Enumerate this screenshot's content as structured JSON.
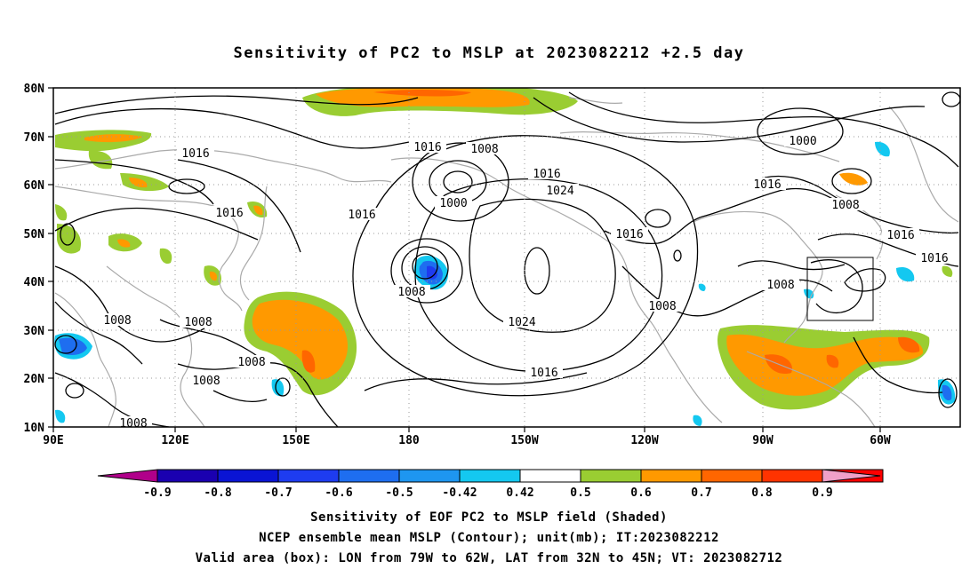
{
  "title": "Sensitivity of PC2 to MSLP at 2023082212 +2.5 day",
  "lat_ticks": [
    "80N",
    "70N",
    "60N",
    "50N",
    "40N",
    "30N",
    "20N",
    "10N"
  ],
  "lon_ticks": [
    "90E",
    "120E",
    "150E",
    "180",
    "150W",
    "120W",
    "90W",
    "60W"
  ],
  "contour_labels": [
    {
      "text": "1016"
    },
    {
      "text": "1016"
    },
    {
      "text": "1016"
    },
    {
      "text": "1008"
    },
    {
      "text": "1008"
    },
    {
      "text": "1008"
    },
    {
      "text": "1008"
    },
    {
      "text": "1008"
    },
    {
      "text": "1016"
    },
    {
      "text": "1008"
    },
    {
      "text": "1000"
    },
    {
      "text": "1016"
    },
    {
      "text": "1024"
    },
    {
      "text": "1016"
    },
    {
      "text": "1024"
    },
    {
      "text": "1016"
    },
    {
      "text": "1008"
    },
    {
      "text": "1000"
    },
    {
      "text": "1016"
    },
    {
      "text": "1008"
    },
    {
      "text": "1016"
    },
    {
      "text": "1016"
    },
    {
      "text": "1008"
    },
    {
      "text": "1008"
    }
  ],
  "colorbar": {
    "labels": [
      "-0.9",
      "-0.8",
      "-0.7",
      "-0.6",
      "-0.5",
      "-0.42",
      "0.42",
      "0.5",
      "0.6",
      "0.7",
      "0.8",
      "0.9"
    ],
    "colors": [
      "#b0008a",
      "#1a00b0",
      "#0a14d4",
      "#1e3cf0",
      "#1e6ef0",
      "#1e96f0",
      "#14c8f0",
      "#ffffff",
      "#9acd32",
      "#ff9900",
      "#ff6600",
      "#ff3300",
      "#ff0000",
      "#f0a0c8"
    ]
  },
  "valid_box": {
    "lon_from": "79W",
    "lon_to": "62W",
    "lat_from": "32N",
    "lat_to": "45N"
  },
  "caption": {
    "line1": "Sensitivity of EOF PC2 to MSLP field (Shaded)",
    "line2": "NCEP ensemble mean MSLP (Contour); unit(mb); IT:2023082212",
    "line3": "Valid area (box): LON from 79W to 62W, LAT from 32N to 45N; VT: 2023082712"
  }
}
